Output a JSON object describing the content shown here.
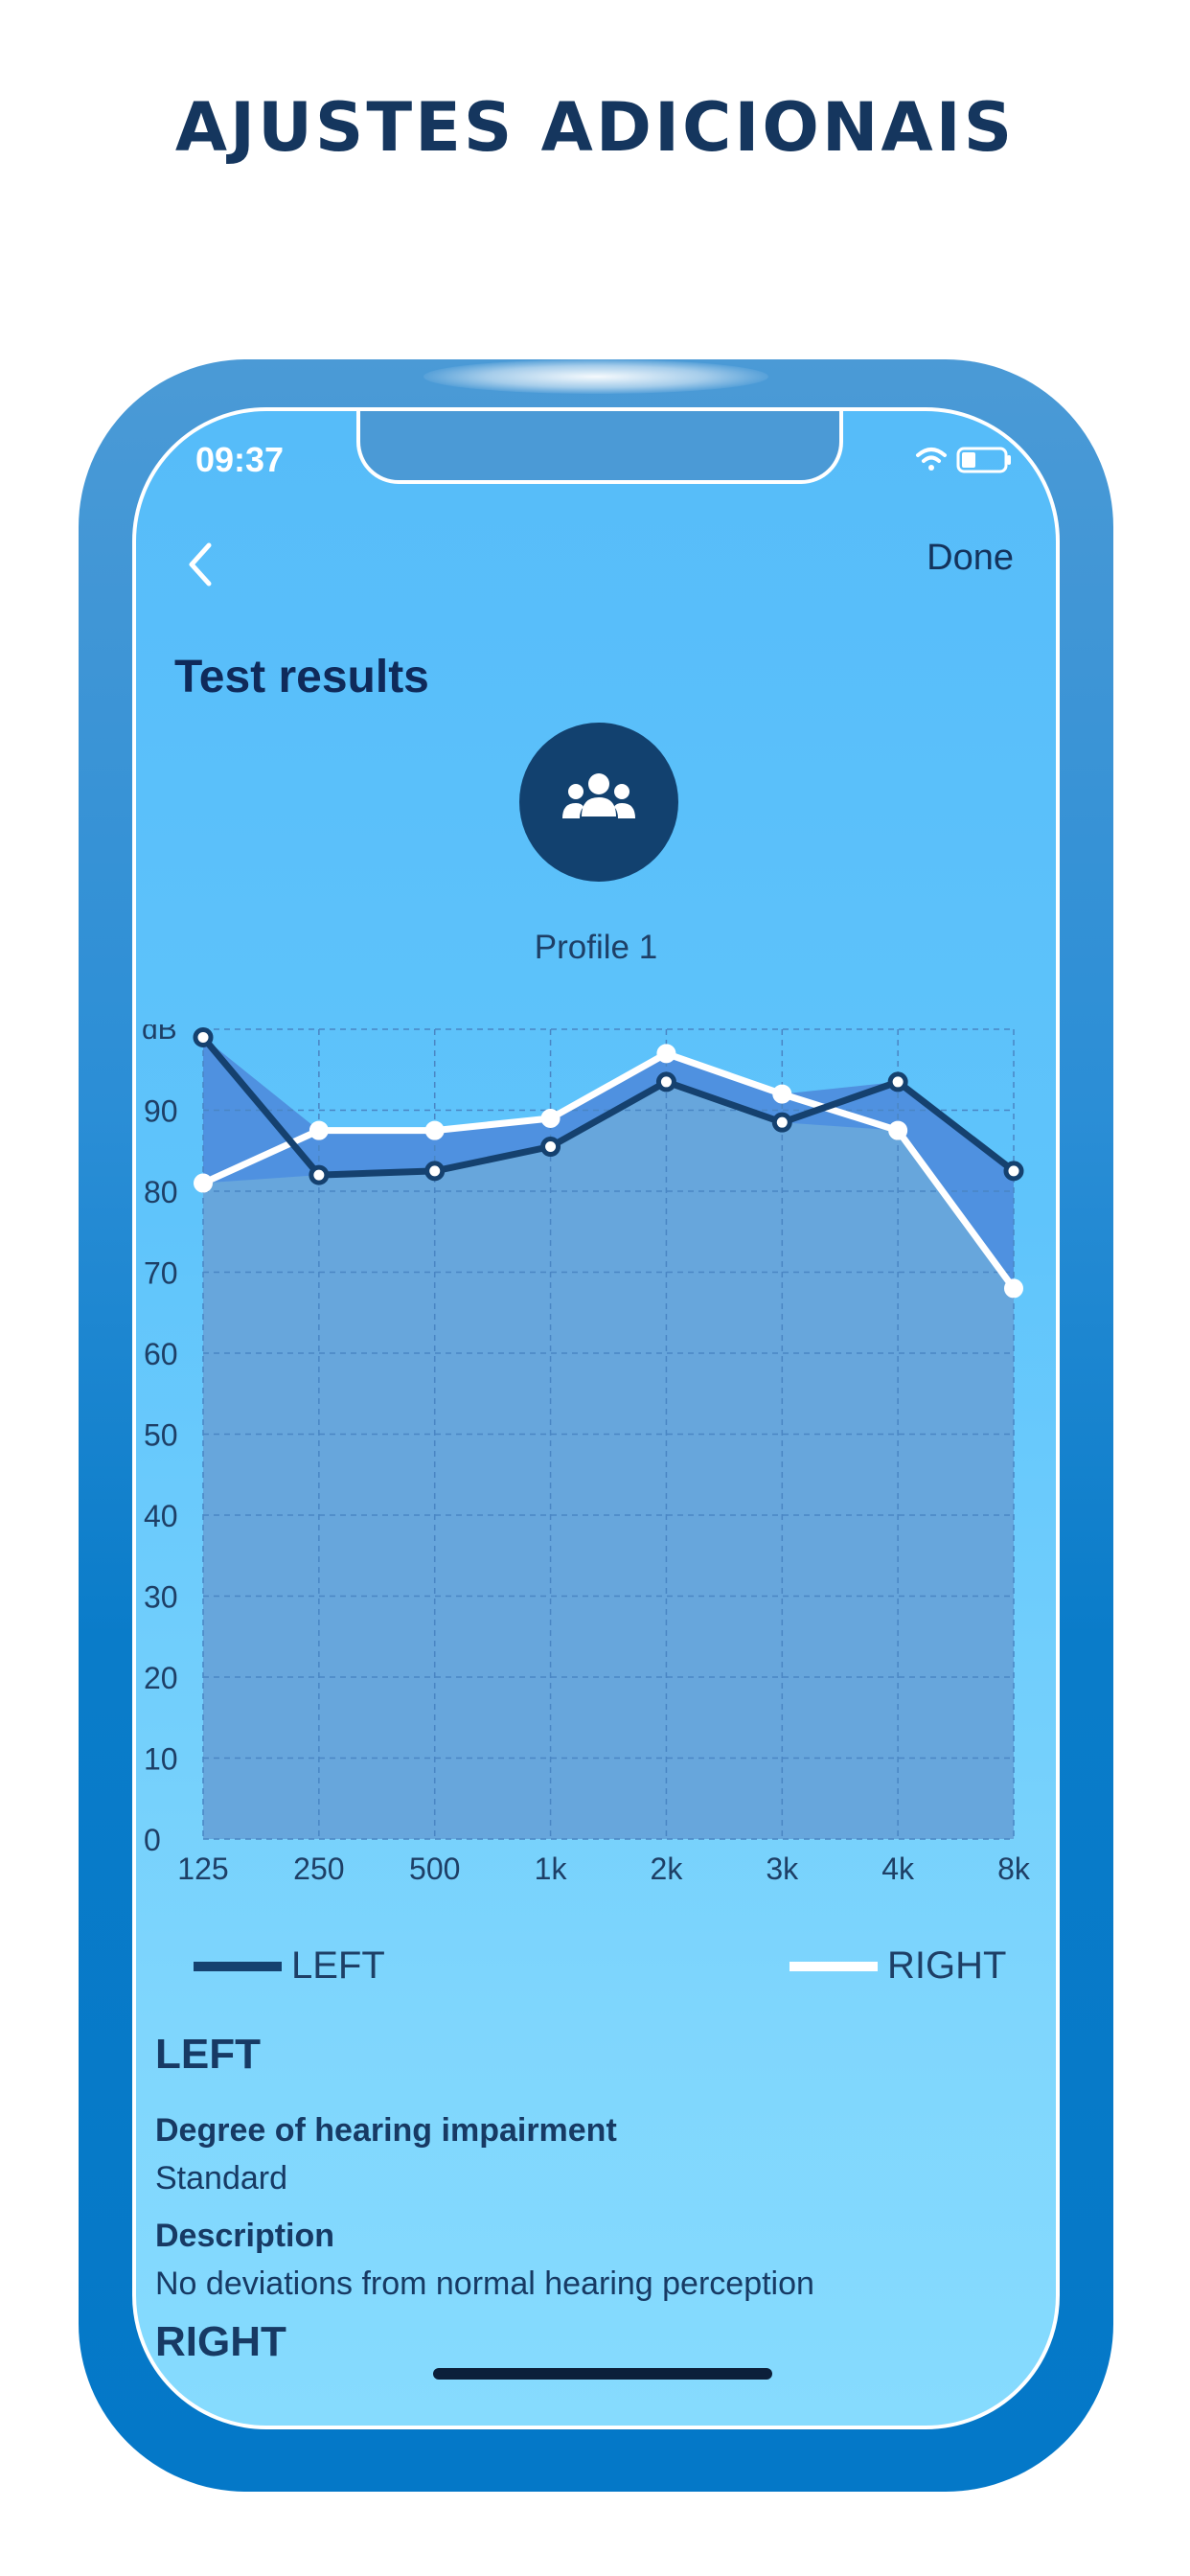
{
  "headline": "AJUSTES ADICIONAIS",
  "status_bar": {
    "time": "09:37",
    "wifi_icon": "wifi-icon",
    "battery_icon": "battery-icon"
  },
  "nav": {
    "back_icon": "chevron-left-icon",
    "done_label": "Done"
  },
  "title": "Test results",
  "profile": {
    "icon": "users-icon",
    "name": "Profile 1"
  },
  "chart_data": {
    "type": "line",
    "ylabel": "dB",
    "ylim": [
      0,
      100
    ],
    "yticks": [
      0,
      10,
      20,
      30,
      40,
      50,
      60,
      70,
      80,
      90
    ],
    "categories": [
      "125",
      "250",
      "500",
      "1k",
      "2k",
      "3k",
      "4k",
      "8k"
    ],
    "series": [
      {
        "name": "LEFT",
        "color": "#15416f",
        "values": [
          99,
          82,
          82.5,
          85.5,
          93.5,
          88.5,
          93.5,
          82.5
        ]
      },
      {
        "name": "RIGHT",
        "color": "#ffffff",
        "values": [
          81,
          87.5,
          87.5,
          89,
          97,
          92,
          87.5,
          68
        ]
      }
    ],
    "grid": true,
    "legend": "bottom"
  },
  "legend": {
    "left": "LEFT",
    "right": "RIGHT"
  },
  "left_section": {
    "heading": "LEFT",
    "degree_label": "Degree of hearing impairment",
    "degree_value": "Standard",
    "description_label": "Description",
    "description_value": "No deviations from normal hearing perception"
  },
  "right_section": {
    "heading": "RIGHT"
  },
  "colors": {
    "headline": "#15365e",
    "phone_frame": "#0478c8",
    "screen_bg": "#5fc4fb",
    "avatar_bg": "#12416f"
  }
}
